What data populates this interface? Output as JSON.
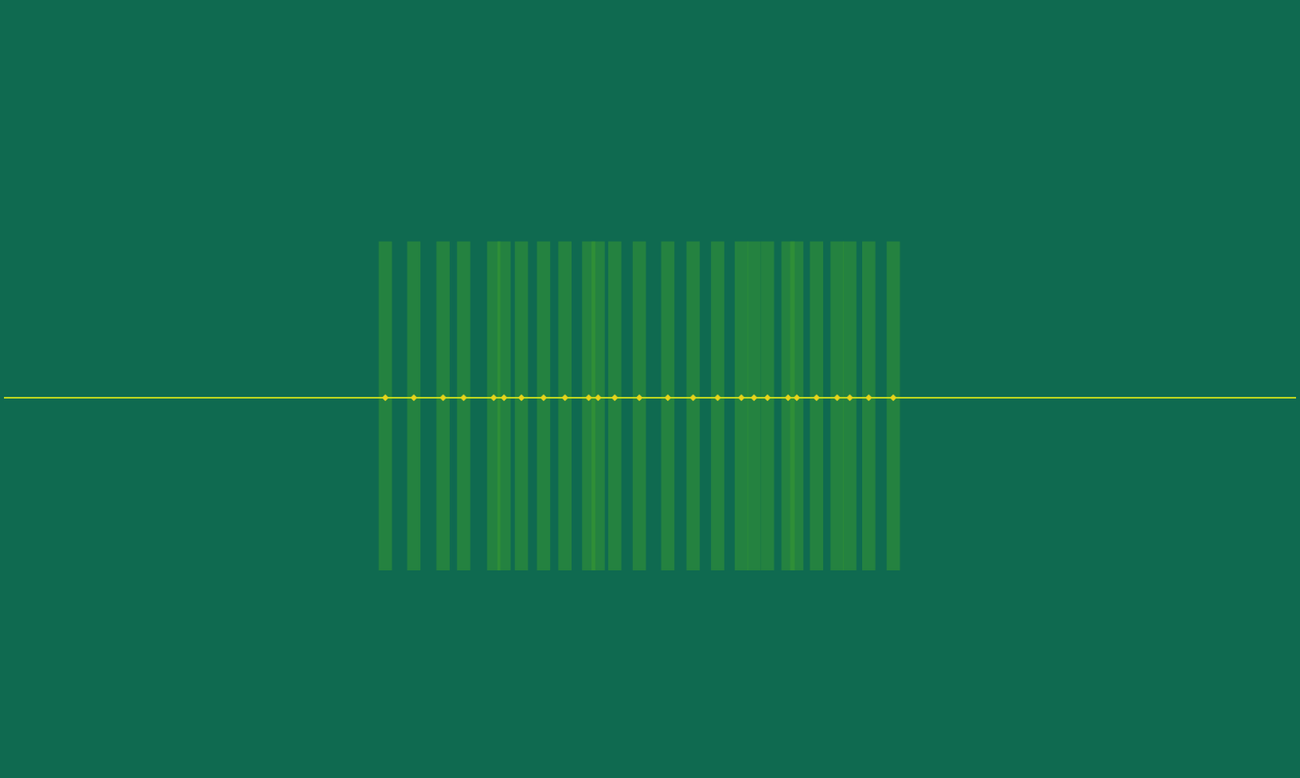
{
  "chart_data": {
    "type": "spectrogram",
    "xlim": [
      0,
      1633
    ],
    "ylim": [
      0,
      978
    ],
    "tick_labels": false,
    "grid": false,
    "series": [
      {
        "type": "line",
        "color": "#c6dc1e",
        "x": [
          0,
          1633
        ],
        "values": [
          478,
          478
        ]
      },
      {
        "type": "bar",
        "color": "#3fa02c",
        "x": [
          482,
          518,
          555,
          581,
          619,
          632,
          654,
          682,
          709,
          739,
          751,
          772,
          803,
          839,
          871,
          902,
          932,
          948,
          965,
          991,
          1002,
          1027,
          1053,
          1069,
          1093,
          1124
        ],
        "values": [
          [
            259,
            676
          ],
          [
            259,
            676
          ],
          [
            259,
            676
          ],
          [
            259,
            676
          ],
          [
            259,
            676
          ],
          [
            259,
            676
          ],
          [
            259,
            676
          ],
          [
            259,
            676
          ],
          [
            259,
            676
          ],
          [
            259,
            676
          ],
          [
            259,
            676
          ],
          [
            259,
            676
          ],
          [
            259,
            676
          ],
          [
            259,
            676
          ],
          [
            259,
            676
          ],
          [
            259,
            676
          ],
          [
            259,
            676
          ],
          [
            259,
            676
          ],
          [
            259,
            676
          ],
          [
            259,
            676
          ],
          [
            259,
            676
          ],
          [
            259,
            676
          ],
          [
            259,
            676
          ],
          [
            259,
            676
          ],
          [
            259,
            676
          ],
          [
            259,
            676
          ]
        ]
      },
      {
        "type": "scatter",
        "color": "#e6d41a",
        "x": [
          482,
          518,
          555,
          581,
          619,
          632,
          654,
          682,
          709,
          739,
          751,
          772,
          803,
          839,
          871,
          902,
          932,
          948,
          965,
          991,
          1002,
          1027,
          1053,
          1069,
          1093,
          1124
        ],
        "values": [
          478,
          478,
          478,
          478,
          478,
          478,
          478,
          478,
          478,
          478,
          478,
          478,
          478,
          478,
          478,
          478,
          478,
          478,
          478,
          478,
          478,
          478,
          478,
          478,
          478,
          478
        ]
      }
    ]
  }
}
